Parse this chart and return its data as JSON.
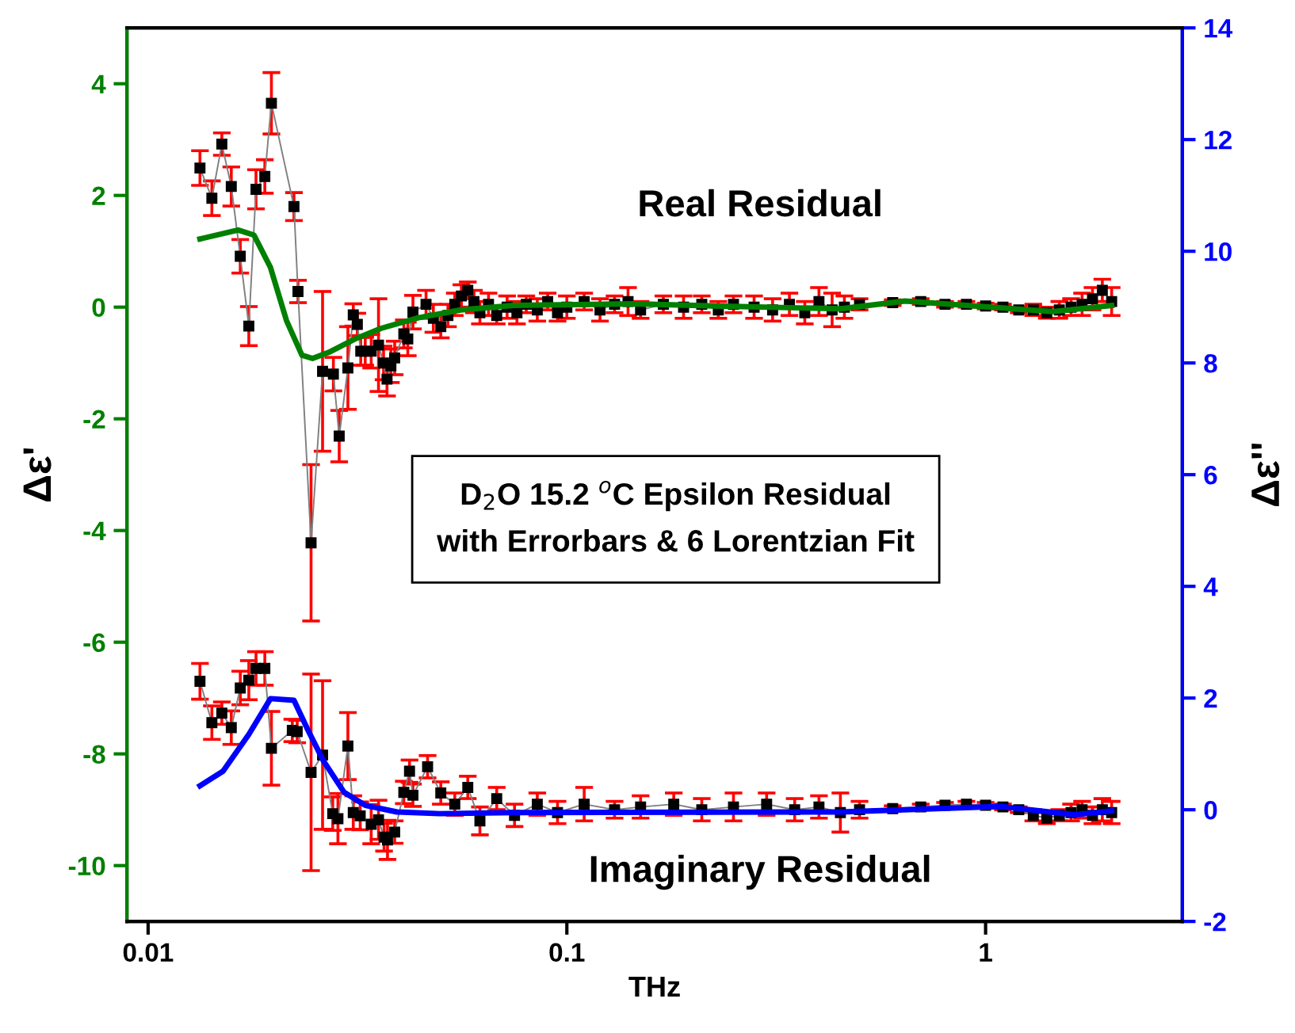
{
  "chart_data": {
    "type": "line",
    "xlabel": "THz",
    "ylabel": "Δε'",
    "y2label": "Δε''",
    "log": "x",
    "xlim": [
      0.0089,
      2.95
    ],
    "xticks": [
      0.01,
      0.1,
      1
    ],
    "ylim": [
      -11,
      5
    ],
    "yticks": [
      -10,
      -8,
      -6,
      -4,
      -2,
      0,
      2,
      4
    ],
    "y2lim": [
      -2,
      14
    ],
    "y2ticks": [
      -2,
      0,
      2,
      4,
      6,
      8,
      10,
      12,
      14
    ],
    "grid": false,
    "legend": false,
    "marker": "square",
    "annotations": [
      "Real Residual",
      "Imaginary Residual",
      "D$_{2}$O 15.2 $^{o}$C Epsilon Residual\nwith Errorbars & 6 Lorentzian Fit"
    ],
    "series": [
      {
        "color": "#000000",
        "x": [
          0.0133,
          0.0142,
          0.015,
          0.0158,
          0.0166,
          0.0174,
          0.0181,
          0.019,
          0.0197,
          0.0223,
          0.0228,
          0.0245,
          0.0261,
          0.0277,
          0.0286,
          0.03,
          0.0309,
          0.0316,
          0.0322,
          0.033,
          0.0341,
          0.0355,
          0.0365,
          0.0372,
          0.038,
          0.0388,
          0.0408,
          0.0417,
          0.0429,
          0.0461,
          0.048,
          0.05,
          0.052,
          0.054,
          0.056,
          0.058,
          0.06,
          0.062,
          0.065,
          0.068,
          0.072,
          0.076,
          0.08,
          0.085,
          0.09,
          0.095,
          0.1,
          0.11,
          0.12,
          0.13,
          0.14,
          0.15,
          0.17,
          0.19,
          0.21,
          0.23,
          0.25,
          0.28,
          0.31,
          0.34,
          0.37,
          0.4,
          0.43,
          0.46,
          0.5,
          0.6,
          0.7,
          0.8,
          0.9,
          1.0,
          1.1,
          1.2,
          1.3,
          1.4,
          1.5,
          1.6,
          1.7,
          1.8,
          1.9,
          2.0
        ],
        "values": [
          2.49,
          1.95,
          2.92,
          2.16,
          0.91,
          -0.34,
          2.11,
          2.34,
          3.65,
          1.8,
          0.28,
          -4.22,
          -1.15,
          -1.2,
          -2.31,
          -1.09,
          -0.14,
          -0.31,
          -0.79,
          -0.79,
          -0.79,
          -0.68,
          -1.0,
          -1.29,
          -1.05,
          -0.91,
          -0.48,
          -0.57,
          -0.09,
          0.05,
          -0.2,
          -0.35,
          -0.15,
          0.05,
          0.2,
          0.3,
          0.1,
          -0.1,
          0.05,
          -0.15,
          0.0,
          -0.1,
          0.05,
          -0.05,
          0.1,
          -0.1,
          0.0,
          0.1,
          -0.05,
          0.05,
          0.1,
          -0.05,
          0.05,
          0.0,
          0.05,
          -0.05,
          0.05,
          0.0,
          -0.05,
          0.05,
          -0.1,
          0.1,
          -0.05,
          0.0,
          0.05,
          0.08,
          0.1,
          0.05,
          0.05,
          0.02,
          0.0,
          -0.05,
          -0.05,
          -0.1,
          -0.05,
          0.0,
          0.05,
          0.15,
          0.3,
          0.1
        ],
        "errors": [
          0.31,
          0.31,
          0.2,
          0.35,
          0.3,
          0.35,
          0.35,
          0.3,
          0.55,
          0.25,
          0.2,
          1.4,
          1.43,
          0.3,
          0.46,
          0.74,
          0.2,
          0.2,
          0.25,
          0.25,
          0.3,
          0.83,
          0.3,
          0.3,
          0.3,
          0.3,
          0.25,
          0.3,
          0.3,
          0.25,
          0.25,
          0.2,
          0.2,
          0.2,
          0.2,
          0.15,
          0.2,
          0.2,
          0.2,
          0.15,
          0.2,
          0.2,
          0.15,
          0.2,
          0.15,
          0.15,
          0.2,
          0.15,
          0.2,
          0.15,
          0.25,
          0.15,
          0.15,
          0.2,
          0.15,
          0.15,
          0.15,
          0.2,
          0.2,
          0.2,
          0.2,
          0.25,
          0.3,
          0.2,
          0.1,
          0.05,
          0.05,
          0.05,
          0.05,
          0.05,
          0.05,
          0.05,
          0.1,
          0.1,
          0.15,
          0.15,
          0.2,
          0.2,
          0.2,
          0.25
        ]
      },
      {
        "color": "#008000",
        "marker": "none",
        "x": [
          0.0133,
          0.0164,
          0.0179,
          0.0196,
          0.0214,
          0.0233,
          0.0247,
          0.027,
          0.0312,
          0.036,
          0.0442,
          0.0558,
          0.0746,
          0.1455,
          0.2253,
          0.4516,
          0.6418,
          1.445,
          2.0
        ],
        "values": [
          1.22,
          1.38,
          1.29,
          0.71,
          -0.24,
          -0.86,
          -0.92,
          -0.81,
          -0.57,
          -0.38,
          -0.19,
          -0.05,
          0.03,
          0.06,
          0.02,
          -0.03,
          0.11,
          -0.08,
          0.03
        ]
      },
      {
        "color": "#000000",
        "axis": "y2",
        "x": [
          0.0133,
          0.0142,
          0.015,
          0.0158,
          0.0166,
          0.0174,
          0.0181,
          0.019,
          0.0197,
          0.0221,
          0.0227,
          0.0245,
          0.0261,
          0.0276,
          0.0284,
          0.03,
          0.0309,
          0.0321,
          0.0341,
          0.0355,
          0.0366,
          0.0373,
          0.0388,
          0.0408,
          0.0421,
          0.0429,
          0.0465,
          0.05,
          0.054,
          0.058,
          0.062,
          0.068,
          0.075,
          0.085,
          0.095,
          0.11,
          0.13,
          0.15,
          0.18,
          0.21,
          0.25,
          0.3,
          0.35,
          0.4,
          0.45,
          0.5,
          0.6,
          0.7,
          0.8,
          0.9,
          1.0,
          1.1,
          1.2,
          1.3,
          1.4,
          1.5,
          1.6,
          1.7,
          1.8,
          1.9,
          2.0
        ],
        "values": [
          2.3,
          1.56,
          1.73,
          1.47,
          2.18,
          2.32,
          2.53,
          2.53,
          1.1,
          1.42,
          1.4,
          0.67,
          0.98,
          -0.07,
          -0.16,
          1.14,
          -0.05,
          -0.11,
          -0.26,
          -0.18,
          -0.49,
          -0.54,
          -0.4,
          0.31,
          0.69,
          0.26,
          0.77,
          0.3,
          0.1,
          0.4,
          -0.2,
          0.2,
          -0.1,
          0.1,
          -0.05,
          0.1,
          0.0,
          0.05,
          0.1,
          0.0,
          0.05,
          0.1,
          0.0,
          0.05,
          -0.05,
          0.0,
          0.02,
          0.05,
          0.08,
          0.1,
          0.08,
          0.05,
          0.0,
          -0.1,
          -0.15,
          -0.1,
          -0.05,
          0.0,
          -0.1,
          0.0,
          -0.05
        ],
        "errors": [
          0.32,
          0.3,
          0.2,
          0.3,
          0.3,
          0.35,
          0.3,
          0.3,
          0.66,
          0.2,
          0.2,
          1.76,
          1.33,
          0.3,
          0.45,
          0.6,
          0.3,
          0.25,
          0.35,
          0.35,
          0.25,
          0.35,
          0.2,
          0.2,
          0.2,
          0.2,
          0.2,
          0.2,
          0.2,
          0.2,
          0.25,
          0.2,
          0.2,
          0.2,
          0.2,
          0.3,
          0.15,
          0.2,
          0.2,
          0.2,
          0.25,
          0.2,
          0.2,
          0.2,
          0.35,
          0.15,
          0.05,
          0.05,
          0.05,
          0.05,
          0.05,
          0.05,
          0.05,
          0.1,
          0.1,
          0.1,
          0.15,
          0.15,
          0.15,
          0.2,
          0.2
        ]
      },
      {
        "color": "#0000ff",
        "marker": "none",
        "axis": "y2",
        "x": [
          0.0133,
          0.0151,
          0.0174,
          0.0196,
          0.0223,
          0.024,
          0.0262,
          0.0294,
          0.033,
          0.0393,
          0.0497,
          0.0746,
          0.4516,
          1.082,
          1.629,
          2.0
        ],
        "values": [
          0.43,
          0.69,
          1.35,
          1.99,
          1.96,
          1.45,
          0.88,
          0.31,
          0.08,
          -0.04,
          -0.07,
          -0.05,
          -0.04,
          0.06,
          -0.09,
          -0.02
        ]
      }
    ]
  }
}
